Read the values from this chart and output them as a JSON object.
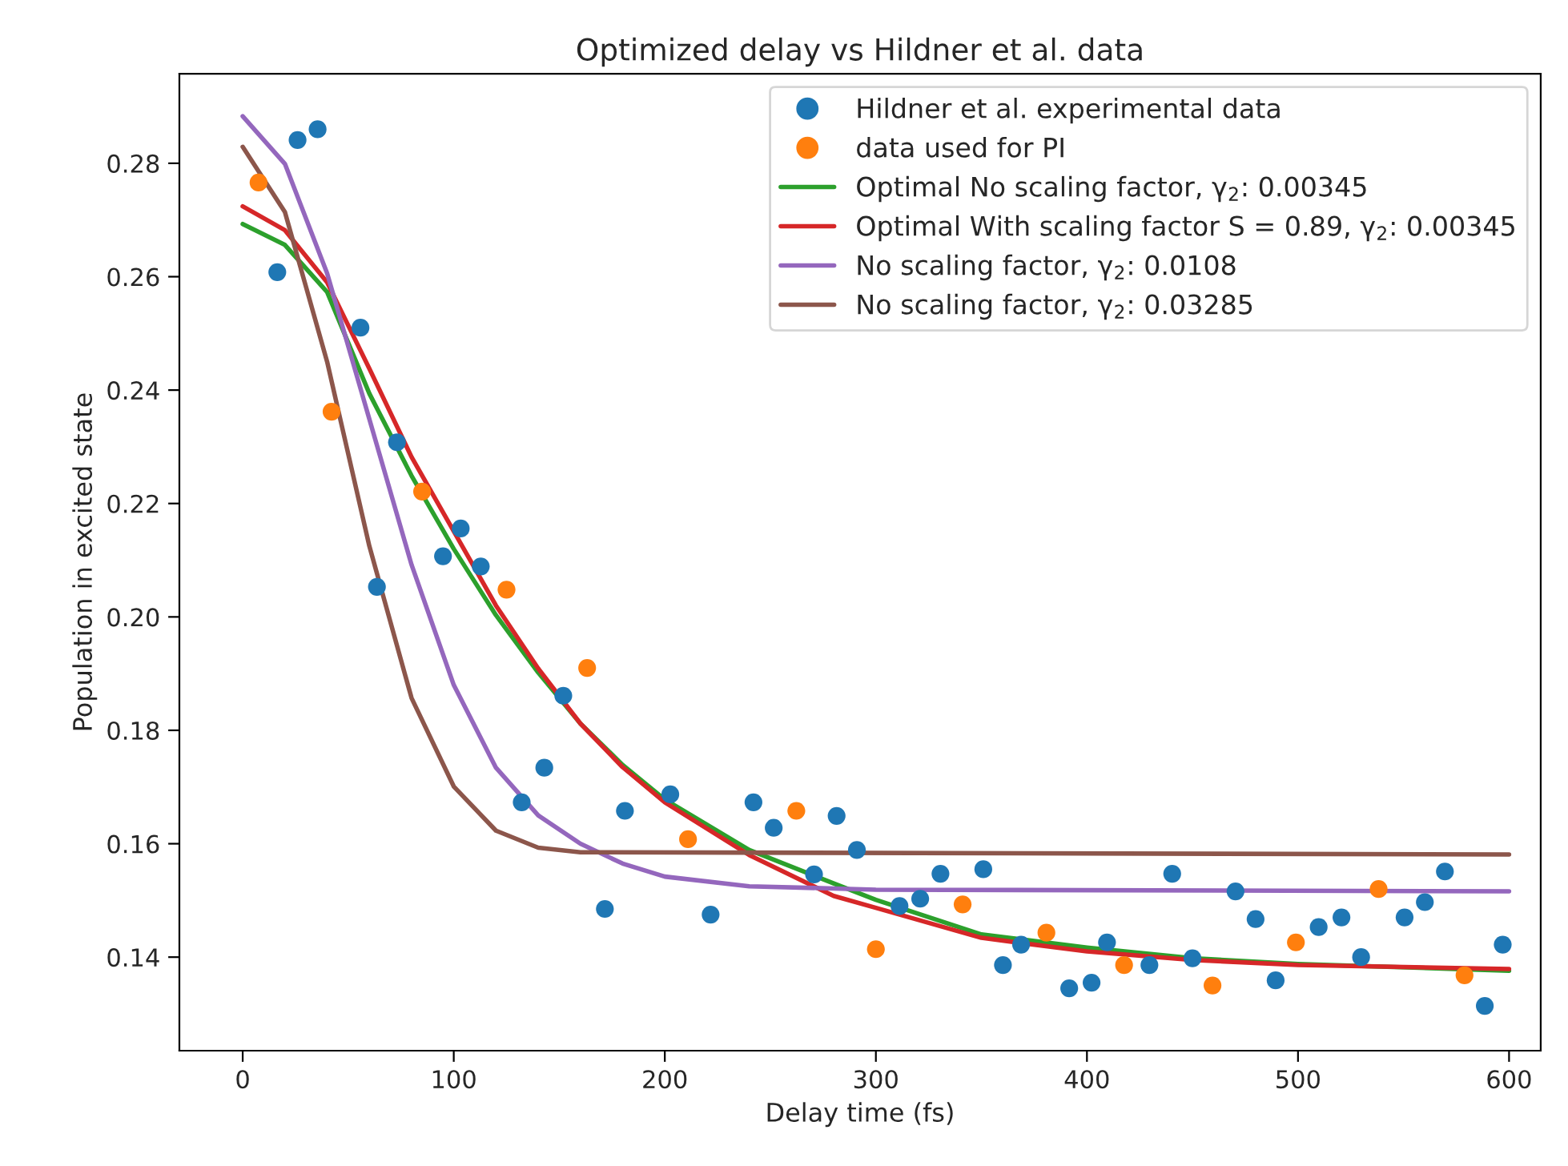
{
  "chart_data": {
    "type": "scatter",
    "title": "Optimized delay vs Hildner et al. data",
    "xlabel": "Delay time (fs)",
    "ylabel": "Population in excited state",
    "xlim": [
      -30,
      615
    ],
    "xticks": [
      0,
      100,
      200,
      300,
      400,
      500,
      600
    ],
    "ylim": [
      0.1235,
      0.2958
    ],
    "yticks": [
      0.14,
      0.16,
      0.18,
      {
        "value": 0.2,
        "label": "0.20"
      },
      0.22,
      0.24,
      0.26,
      0.28
    ],
    "grid": false,
    "legend": "top right",
    "series": [
      {
        "name": "Hildner et al. experimental data",
        "marker": "circle",
        "color": "#1f77b4",
        "x": [
          16.4,
          26,
          35.5,
          55.8,
          63.6,
          73.1,
          94.9,
          103.3,
          112.8,
          132.2,
          142.9,
          151.9,
          171.6,
          181.1,
          202.6,
          221.7,
          242,
          251.6,
          270.7,
          281.4,
          291,
          311.2,
          321,
          330.6,
          350.9,
          360.2,
          368.8,
          391.6,
          402.2,
          409.5,
          429.6,
          440.4,
          450,
          470.4,
          479.9,
          489.4,
          509.8,
          520.6,
          529.9,
          550.5,
          560.1,
          569.6,
          588.5,
          597
        ],
        "values": [
          0.2608,
          0.2841,
          0.286,
          0.251,
          0.2053,
          0.2308,
          0.2107,
          0.2156,
          0.2089,
          0.1673,
          0.1734,
          0.1861,
          0.1485,
          0.1658,
          0.1687,
          0.1475,
          0.1673,
          0.1628,
          0.1546,
          0.1649,
          0.1589,
          0.149,
          0.1503,
          0.1547,
          0.1555,
          0.1386,
          0.1422,
          0.1345,
          0.1355,
          0.1426,
          0.1386,
          0.1547,
          0.1398,
          0.1516,
          0.1467,
          0.1359,
          0.1453,
          0.147,
          0.14,
          0.147,
          0.1497,
          0.1551,
          0.1314,
          0.1422
        ]
      },
      {
        "name": "data used for PI",
        "marker": "circle",
        "color": "#ff7f0e",
        "x": [
          7.5,
          42.1,
          85,
          125,
          163.2,
          211,
          262.3,
          300,
          341.1,
          380.8,
          417.6,
          459.5,
          499,
          538.2,
          578.9
        ],
        "values": [
          0.2766,
          0.2362,
          0.2221,
          0.2048,
          0.191,
          0.1608,
          0.1658,
          0.1414,
          0.1493,
          0.1443,
          0.1386,
          0.135,
          0.1426,
          0.152,
          0.1368
        ]
      },
      {
        "name": "Optimal No scaling factor, γ$_{2}$: 0.00345",
        "type": "line",
        "marker": "none",
        "color": "#2ca02c",
        "x": [
          0,
          20,
          40,
          60,
          80,
          100,
          120,
          140,
          160,
          180,
          200,
          240,
          280,
          300,
          350,
          400,
          450,
          500,
          600
        ],
        "values": [
          0.2693,
          0.2656,
          0.2573,
          0.2394,
          0.2249,
          0.212,
          0.2003,
          0.1902,
          0.1812,
          0.1739,
          0.1678,
          0.1589,
          0.153,
          0.1501,
          0.144,
          0.1417,
          0.1398,
          0.1388,
          0.1376
        ]
      },
      {
        "name": "Optimal With scaling factor S = 0.89, γ$_{2}$: 0.00345",
        "type": "line",
        "marker": "none",
        "color": "#d62728",
        "x": [
          0,
          20,
          40,
          60,
          80,
          100,
          120,
          140,
          160,
          180,
          200,
          240,
          280,
          300,
          350,
          400,
          450,
          500,
          600
        ],
        "values": [
          0.2724,
          0.2682,
          0.259,
          0.2438,
          0.2282,
          0.2151,
          0.202,
          0.1909,
          0.1812,
          0.1735,
          0.1673,
          0.158,
          0.1508,
          0.1487,
          0.1434,
          0.141,
          0.1395,
          0.1386,
          0.1379
        ]
      },
      {
        "name": "No scaling factor, γ$_{2}$: 0.0108",
        "type": "line",
        "marker": "none",
        "color": "#9467bd",
        "x": [
          0,
          20,
          40,
          60,
          80,
          100,
          120,
          140,
          160,
          180,
          200,
          240,
          300,
          600
        ],
        "values": [
          0.2883,
          0.2799,
          0.2606,
          0.2349,
          0.2092,
          0.188,
          0.1734,
          0.165,
          0.16,
          0.1565,
          0.1542,
          0.1525,
          0.1519,
          0.1516
        ]
      },
      {
        "name": "No scaling factor, γ$_{2}$: 0.03285",
        "type": "line",
        "marker": "none",
        "color": "#8c564b",
        "x": [
          0,
          20,
          40,
          60,
          80,
          100,
          120,
          140,
          160,
          600
        ],
        "values": [
          0.2829,
          0.2714,
          0.245,
          0.2125,
          0.1857,
          0.1701,
          0.1623,
          0.1593,
          0.1585,
          0.1581
        ]
      }
    ]
  }
}
